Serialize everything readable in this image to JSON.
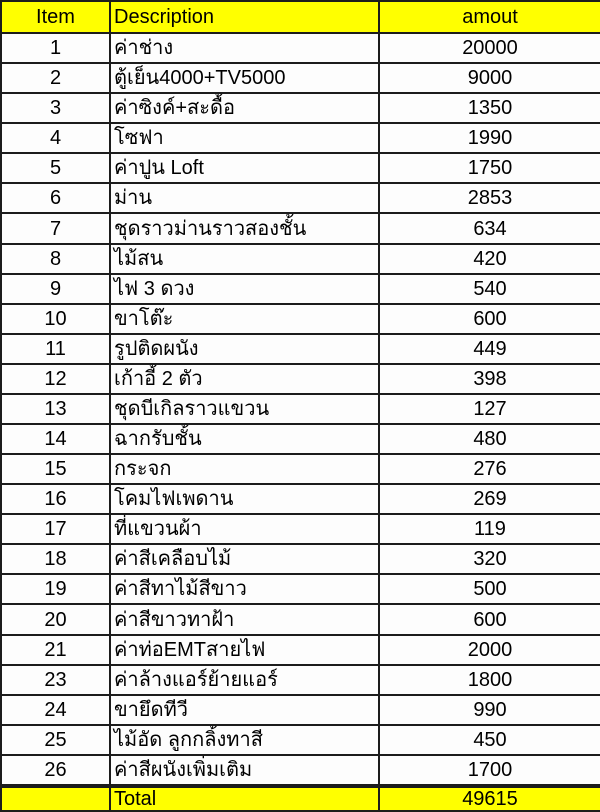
{
  "table": {
    "headers": {
      "item": "Item",
      "description": "Description",
      "amount": "amout"
    },
    "rows": [
      {
        "item": "1",
        "description": "ค่าช่าง",
        "amount": "20000"
      },
      {
        "item": "2",
        "description": "ตู้เย็น4000+TV5000",
        "amount": "9000"
      },
      {
        "item": "3",
        "description": "ค่าซิงค์+สะดื้อ",
        "amount": "1350"
      },
      {
        "item": "4",
        "description": "โซฟา",
        "amount": "1990"
      },
      {
        "item": "5",
        "description": "ค่าปูน Loft",
        "amount": "1750"
      },
      {
        "item": "6",
        "description": "ม่าน",
        "amount": "2853"
      },
      {
        "item": "7",
        "description": "ชุดราวม่านราวสองชั้น",
        "amount": "634"
      },
      {
        "item": "8",
        "description": "ไม้สน",
        "amount": "420"
      },
      {
        "item": "9",
        "description": "ไฟ 3 ดวง",
        "amount": "540"
      },
      {
        "item": "10",
        "description": "ขาโต๊ะ",
        "amount": "600"
      },
      {
        "item": "11",
        "description": "รูปติดผนัง",
        "amount": "449"
      },
      {
        "item": "12",
        "description": "เก้าอี้ 2 ตัว",
        "amount": "398"
      },
      {
        "item": "13",
        "description": "ชุดบีเกิลราวแขวน",
        "amount": "127"
      },
      {
        "item": "14",
        "description": "ฉากรับชั้น",
        "amount": "480"
      },
      {
        "item": "15",
        "description": "กระจก",
        "amount": "276"
      },
      {
        "item": "16",
        "description": "โคมไฟเพดาน",
        "amount": "269"
      },
      {
        "item": "17",
        "description": "ที่แขวนผ้า",
        "amount": "119"
      },
      {
        "item": "18",
        "description": "ค่าสีเคลือบไม้",
        "amount": "320"
      },
      {
        "item": "19",
        "description": "ค่าสีทาไม้สีขาว",
        "amount": "500"
      },
      {
        "item": "20",
        "description": "ค่าสีขาวทาฝ้า",
        "amount": "600"
      },
      {
        "item": "21",
        "description": "ค่าท่อEMTสายไฟ",
        "amount": "2000"
      },
      {
        "item": "23",
        "description": "ค่าล้างแอร์ย้ายแอร์",
        "amount": "1800"
      },
      {
        "item": "24",
        "description": "ขายึดทีวี",
        "amount": "990"
      },
      {
        "item": "25",
        "description": "ไม้อัด ลูกกลิ้งทาสี",
        "amount": "450"
      },
      {
        "item": "26",
        "description": "ค่าสีผนังเพิ่มเติม",
        "amount": "1700"
      }
    ],
    "empty_row": {
      "item": "",
      "description": "",
      "amount": ""
    },
    "total": {
      "item": "",
      "label": "Total",
      "amount": "49615"
    }
  },
  "colors": {
    "header_bg": "#ffff00",
    "total_bg": "#ffff00",
    "border": "#1c1c1c",
    "text": "#000000",
    "cell_bg": "#fdfdfd"
  }
}
